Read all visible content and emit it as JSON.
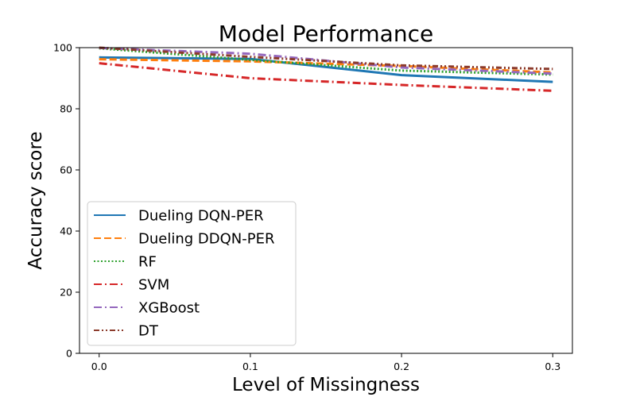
{
  "chart_data": {
    "type": "line",
    "title": "Model Performance",
    "xlabel": "Level of Missingness",
    "ylabel": "Accuracy score",
    "x": [
      0.0,
      0.1,
      0.2,
      0.3
    ],
    "xticks": [
      "0.0",
      "0.1",
      "0.2",
      "0.3"
    ],
    "yticks": [
      "0",
      "20",
      "40",
      "60",
      "80",
      "100"
    ],
    "xlim": [
      -0.013,
      0.313
    ],
    "ylim": [
      0,
      100
    ],
    "grid": false,
    "legend_position": "lower-left",
    "series": [
      {
        "name": "Dueling DQN-PER",
        "values": [
          96.8,
          96.3,
          91.0,
          88.8
        ],
        "color": "#1f77b4",
        "style": "solid"
      },
      {
        "name": "Dueling DDQN-PER",
        "values": [
          96.2,
          95.5,
          94.0,
          91.9
        ],
        "color": "#ff7f0e",
        "style": "dashed"
      },
      {
        "name": "RF",
        "values": [
          99.8,
          96.0,
          92.5,
          91.2
        ],
        "color": "#2ca02c",
        "style": "dotted"
      },
      {
        "name": "SVM",
        "values": [
          94.9,
          90.0,
          87.8,
          85.9
        ],
        "color": "#d62728",
        "style": "dashdot"
      },
      {
        "name": "XGBoost",
        "values": [
          99.9,
          98.0,
          93.5,
          91.5
        ],
        "color": "#9467bd",
        "style": "dashdot"
      },
      {
        "name": "DT",
        "values": [
          100.0,
          97.0,
          94.2,
          93.0
        ],
        "color": "#8c3b2c",
        "style": "dashdotdot"
      }
    ]
  }
}
